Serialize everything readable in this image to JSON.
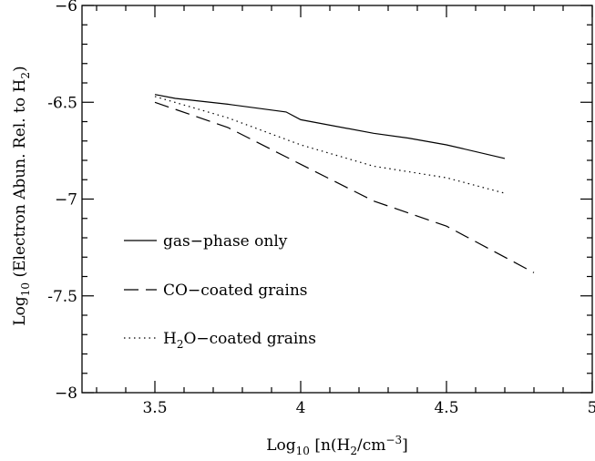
{
  "chart_data": {
    "type": "line",
    "title": "",
    "xlabel": {
      "prefix": "Log",
      "sub": "10",
      "text": " [n(H",
      "sub2": "2",
      "text2": "/cm",
      "sup": "−3",
      "text3": "]"
    },
    "ylabel": {
      "prefix": "Log",
      "sub": "10",
      "text": " (Electron Abun. Rel. to H",
      "sub2": "2",
      "text2": ")"
    },
    "xlim": [
      3.25,
      5.0
    ],
    "ylim": [
      -8.0,
      -6.0
    ],
    "xticks": [
      {
        "value": 3.5,
        "label": "3.5"
      },
      {
        "value": 4.0,
        "label": "4"
      },
      {
        "value": 4.5,
        "label": "4.5"
      },
      {
        "value": 5.0,
        "label": "5"
      }
    ],
    "yticks": [
      {
        "value": -6.0,
        "label": "−6"
      },
      {
        "value": -6.5,
        "label": "-6.5"
      },
      {
        "value": -7.0,
        "label": "−7"
      },
      {
        "value": -7.5,
        "label": "-7.5"
      },
      {
        "value": -8.0,
        "label": "−8"
      }
    ],
    "grid": false,
    "legend_position": "lower-left",
    "series": [
      {
        "name": "gas−phase only",
        "style": "solid",
        "x": [
          3.5,
          3.57,
          3.75,
          3.95,
          4.0,
          4.25,
          4.37,
          4.5,
          4.7
        ],
        "y": [
          -6.46,
          -6.48,
          -6.51,
          -6.55,
          -6.59,
          -6.66,
          -6.685,
          -6.72,
          -6.79
        ]
      },
      {
        "name": "CO−coated grains",
        "style": "dashed",
        "x": [
          3.5,
          3.75,
          4.0,
          4.25,
          4.5,
          4.8
        ],
        "y": [
          -6.5,
          -6.63,
          -6.82,
          -7.01,
          -7.14,
          -7.38
        ]
      },
      {
        "name": "H2O−coated grains",
        "label": {
          "prefix": "H",
          "sub": "2",
          "text": "O−coated grains"
        },
        "style": "dotted",
        "x": [
          3.5,
          3.75,
          4.0,
          4.25,
          4.5,
          4.7
        ],
        "y": [
          -6.47,
          -6.58,
          -6.72,
          -6.83,
          -6.89,
          -6.97
        ]
      }
    ]
  }
}
